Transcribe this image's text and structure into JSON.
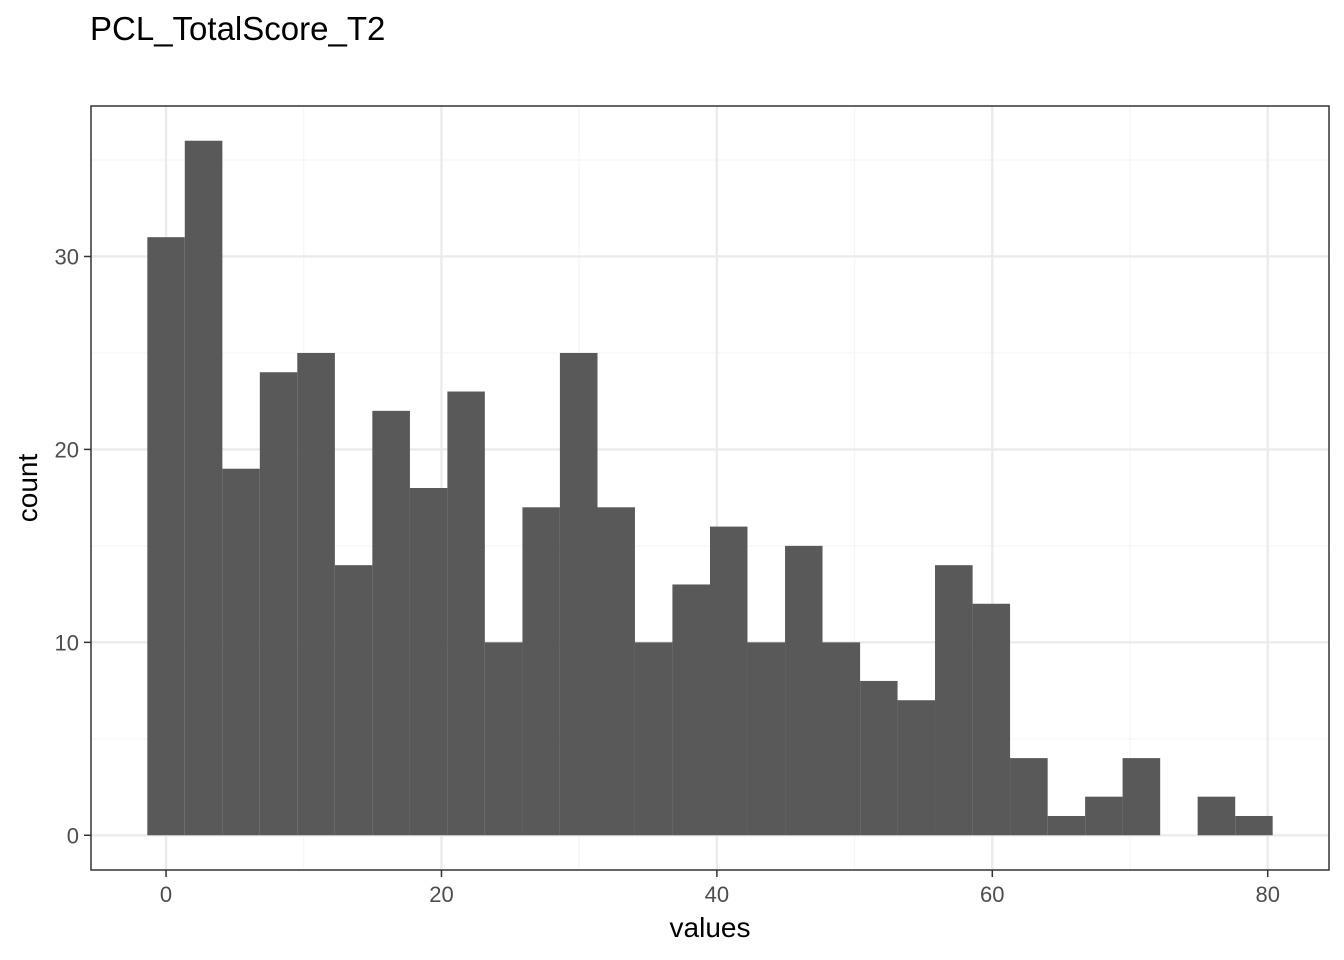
{
  "chart_data": {
    "type": "bar",
    "title": "PCL_TotalScore_T2",
    "xlabel": "values",
    "ylabel": "count",
    "bin_width": 2.7241,
    "bins": [
      {
        "x_start": -1.36,
        "x_end": 1.36,
        "count": 31
      },
      {
        "x_start": 1.36,
        "x_end": 4.09,
        "count": 36
      },
      {
        "x_start": 4.09,
        "x_end": 6.81,
        "count": 19
      },
      {
        "x_start": 6.81,
        "x_end": 9.53,
        "count": 24
      },
      {
        "x_start": 9.53,
        "x_end": 12.26,
        "count": 25
      },
      {
        "x_start": 12.26,
        "x_end": 14.98,
        "count": 14
      },
      {
        "x_start": 14.98,
        "x_end": 17.71,
        "count": 22
      },
      {
        "x_start": 17.71,
        "x_end": 20.43,
        "count": 18
      },
      {
        "x_start": 20.43,
        "x_end": 23.15,
        "count": 23
      },
      {
        "x_start": 23.15,
        "x_end": 25.88,
        "count": 10
      },
      {
        "x_start": 25.88,
        "x_end": 28.6,
        "count": 17
      },
      {
        "x_start": 28.6,
        "x_end": 31.33,
        "count": 25
      },
      {
        "x_start": 31.33,
        "x_end": 34.05,
        "count": 17
      },
      {
        "x_start": 34.05,
        "x_end": 36.77,
        "count": 10
      },
      {
        "x_start": 36.77,
        "x_end": 39.5,
        "count": 13
      },
      {
        "x_start": 39.5,
        "x_end": 42.22,
        "count": 16
      },
      {
        "x_start": 42.22,
        "x_end": 44.95,
        "count": 10
      },
      {
        "x_start": 44.95,
        "x_end": 47.67,
        "count": 15
      },
      {
        "x_start": 47.67,
        "x_end": 50.4,
        "count": 10
      },
      {
        "x_start": 50.4,
        "x_end": 53.12,
        "count": 8
      },
      {
        "x_start": 53.12,
        "x_end": 55.84,
        "count": 7
      },
      {
        "x_start": 55.84,
        "x_end": 58.57,
        "count": 14
      },
      {
        "x_start": 58.57,
        "x_end": 61.29,
        "count": 12
      },
      {
        "x_start": 61.29,
        "x_end": 64.02,
        "count": 4
      },
      {
        "x_start": 64.02,
        "x_end": 66.74,
        "count": 1
      },
      {
        "x_start": 66.74,
        "x_end": 69.46,
        "count": 2
      },
      {
        "x_start": 69.46,
        "x_end": 72.19,
        "count": 4
      },
      {
        "x_start": 72.19,
        "x_end": 74.91,
        "count": 0
      },
      {
        "x_start": 74.91,
        "x_end": 77.64,
        "count": 2
      },
      {
        "x_start": 77.64,
        "x_end": 80.36,
        "count": 1
      }
    ],
    "xlim": [
      -5.45,
      84.45
    ],
    "ylim": [
      -1.8,
      37.8
    ],
    "x_ticks": [
      0,
      20,
      40,
      60,
      80
    ],
    "x_tick_labels": [
      "0",
      "20",
      "40",
      "60",
      "80"
    ],
    "y_ticks": [
      0,
      10,
      20,
      30
    ],
    "y_tick_labels": [
      "0",
      "10",
      "20",
      "30"
    ],
    "x_minor_ticks": [
      10,
      30,
      50,
      70
    ],
    "y_minor_ticks": [
      5,
      15,
      25,
      35
    ],
    "grid": true,
    "theme": "bw",
    "colors": {
      "bar_fill": "#595959",
      "panel_border": "#333333",
      "grid_major": "#ebebeb",
      "grid_minor": "#f5f5f5",
      "tick_label": "#4d4d4d",
      "text": "#000000"
    }
  }
}
